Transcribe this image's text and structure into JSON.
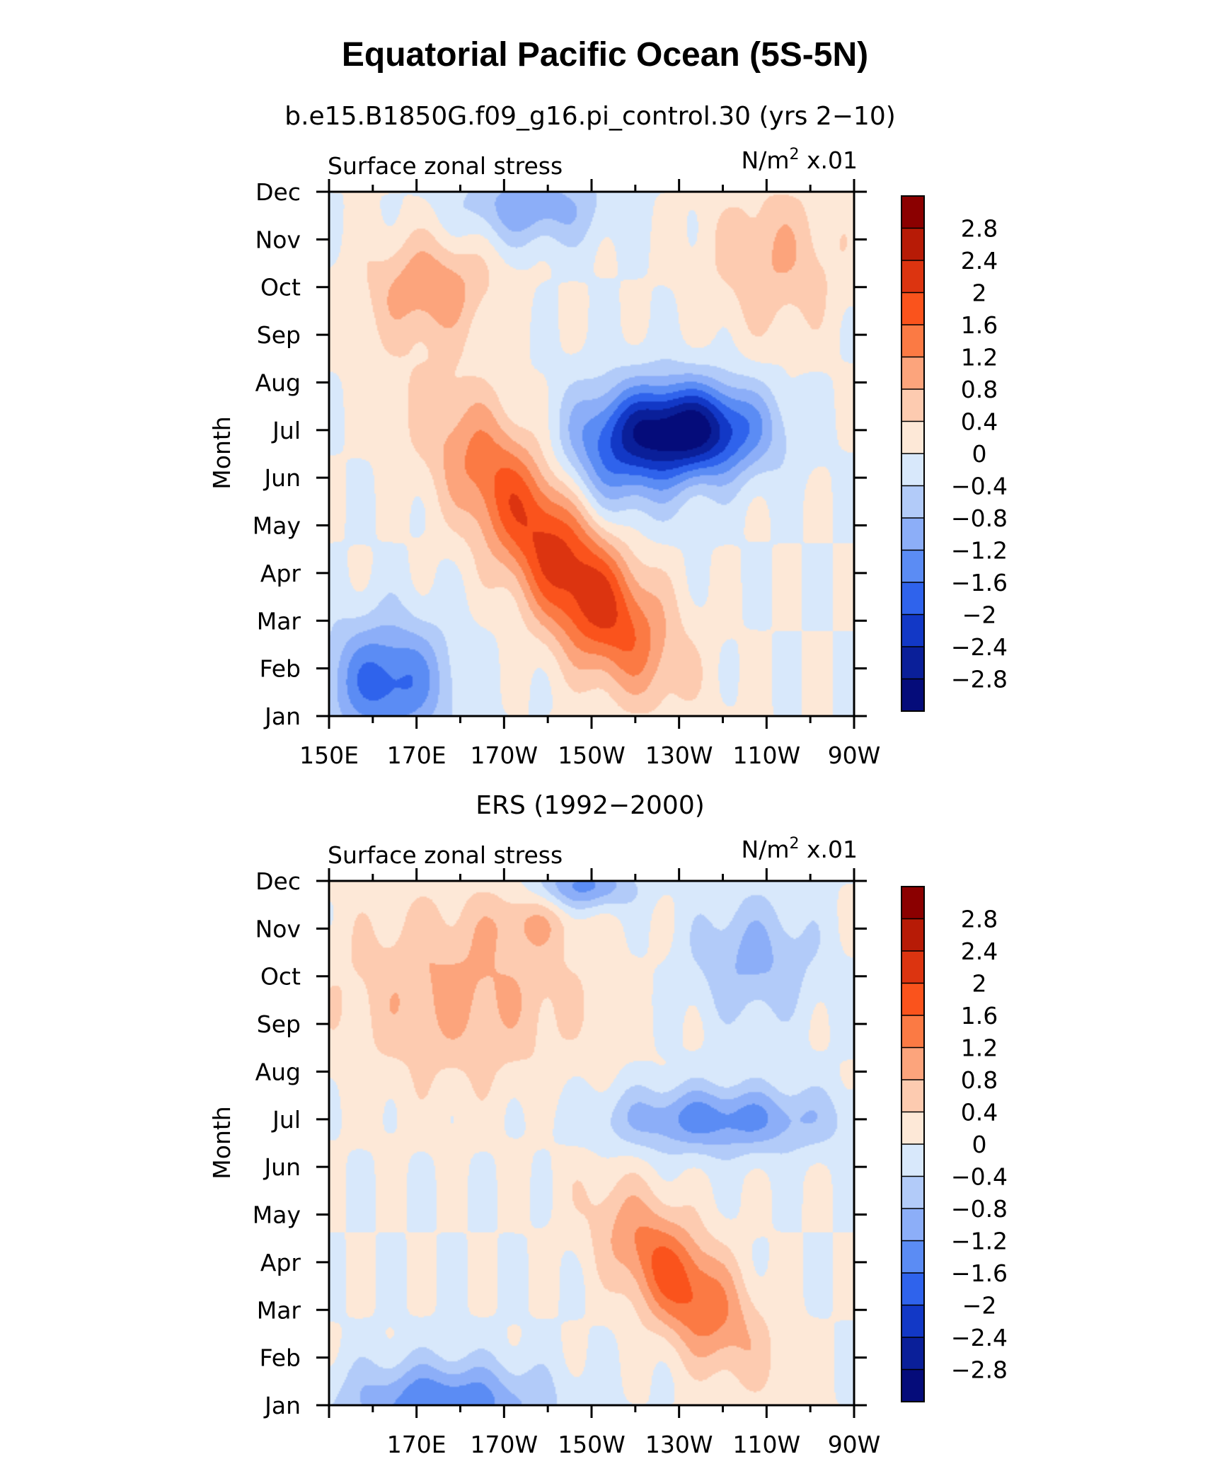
{
  "chart_data": {
    "type": "heatmap",
    "title": "Equatorial Pacific Ocean (5S-5N)",
    "color_scale": {
      "levels": [
        "2.8",
        "2.4",
        "2",
        "1.6",
        "1.2",
        "0.8",
        "0.4",
        "0",
        "−0.4",
        "−0.8",
        "−1.2",
        "−1.6",
        "−2",
        "−2.4",
        "−2.8"
      ],
      "colors": [
        "#8b0000",
        "#b71b06",
        "#dc3410",
        "#fa531c",
        "#fb7a44",
        "#fca47c",
        "#fdcbb0",
        "#fde8d7",
        "#d8e8fb",
        "#b2cbf9",
        "#8caef8",
        "#5b8cf4",
        "#2f63ec",
        "#1238c6",
        "#0a1f99",
        "#050c7a"
      ]
    },
    "panels": [
      {
        "subtitle": "b.e15.B1850G.f09_g16.pi_control.30 (yrs 2−10)",
        "left_label": "Surface zonal stress",
        "right_label_prefix": "N/m",
        "right_label_sup": "2",
        "right_label_suffix": " x.01",
        "ylabel": "Month",
        "months": [
          "Jan",
          "Feb",
          "Mar",
          "Apr",
          "May",
          "Jun",
          "Jul",
          "Aug",
          "Sep",
          "Oct",
          "Nov",
          "Dec"
        ],
        "xticks": [
          {
            "label": "150E",
            "lon": 150
          },
          {
            "label": "170E",
            "lon": 170
          },
          {
            "label": "170W",
            "lon": 190
          },
          {
            "label": "150W",
            "lon": 210
          },
          {
            "label": "130W",
            "lon": 230
          },
          {
            "label": "110W",
            "lon": 250
          },
          {
            "label": "90W",
            "lon": 270
          }
        ],
        "xlim": [
          150,
          270
        ],
        "features": [
          {
            "lon": 196,
            "month": 5.2,
            "amp": 1.9,
            "sx": 22,
            "sy": 1.6,
            "tilt": -0.08
          },
          {
            "lon": 213,
            "month": 3.0,
            "amp": 1.3,
            "sx": 16,
            "sy": 1.4,
            "tilt": -0.05
          },
          {
            "lon": 232,
            "month": 7.0,
            "amp": -3.0,
            "sx": 17,
            "sy": 1.0,
            "tilt": 0.0
          },
          {
            "lon": 215,
            "month": 6.4,
            "amp": -1.2,
            "sx": 14,
            "sy": 1.4,
            "tilt": 0.0
          },
          {
            "lon": 163,
            "month": 1.7,
            "amp": -1.8,
            "sx": 14,
            "sy": 1.3,
            "tilt": 0.0
          },
          {
            "lon": 173,
            "month": 10.0,
            "amp": 1.1,
            "sx": 14,
            "sy": 1.1,
            "tilt": 0.0
          },
          {
            "lon": 196,
            "month": 11.7,
            "amp": -1.1,
            "sx": 16,
            "sy": 0.8,
            "tilt": 0.0
          },
          {
            "lon": 252,
            "month": 10.6,
            "amp": 0.8,
            "sx": 15,
            "sy": 1.6,
            "tilt": 0.0
          }
        ]
      },
      {
        "subtitle": "ERS (1992−2000)",
        "left_label": "Surface zonal stress",
        "right_label_prefix": "N/m",
        "right_label_sup": "2",
        "right_label_suffix": " x.01",
        "ylabel": "Month",
        "months": [
          "Jan",
          "Feb",
          "Mar",
          "Apr",
          "May",
          "Jun",
          "Jul",
          "Aug",
          "Sep",
          "Oct",
          "Nov",
          "Dec"
        ],
        "xticks": [
          {
            "label": "170E",
            "lon": 170
          },
          {
            "label": "170W",
            "lon": 190
          },
          {
            "label": "150W",
            "lon": 210
          },
          {
            "label": "130W",
            "lon": 230
          },
          {
            "label": "110W",
            "lon": 250
          },
          {
            "label": "90W",
            "lon": 270
          }
        ],
        "xlim": [
          150,
          270
        ],
        "features": [
          {
            "lon": 230,
            "month": 3.6,
            "amp": 1.8,
            "sx": 17,
            "sy": 1.3,
            "tilt": -0.07
          },
          {
            "lon": 176,
            "month": 1.0,
            "amp": -1.6,
            "sx": 22,
            "sy": 0.9,
            "tilt": 0.0
          },
          {
            "lon": 239,
            "month": 7.0,
            "amp": -1.4,
            "sx": 26,
            "sy": 0.7,
            "tilt": 0.0
          },
          {
            "lon": 208,
            "month": 11.9,
            "amp": -1.4,
            "sx": 11,
            "sy": 0.5,
            "tilt": 0.0
          },
          {
            "lon": 247,
            "month": 10.4,
            "amp": -0.9,
            "sx": 14,
            "sy": 1.3,
            "tilt": 0.0
          },
          {
            "lon": 180,
            "month": 9.7,
            "amp": 0.9,
            "sx": 28,
            "sy": 2.0,
            "tilt": 0.0
          },
          {
            "lon": 196,
            "month": 11.2,
            "amp": 0.5,
            "sx": 10,
            "sy": 0.6,
            "tilt": 0.0
          }
        ]
      }
    ]
  }
}
